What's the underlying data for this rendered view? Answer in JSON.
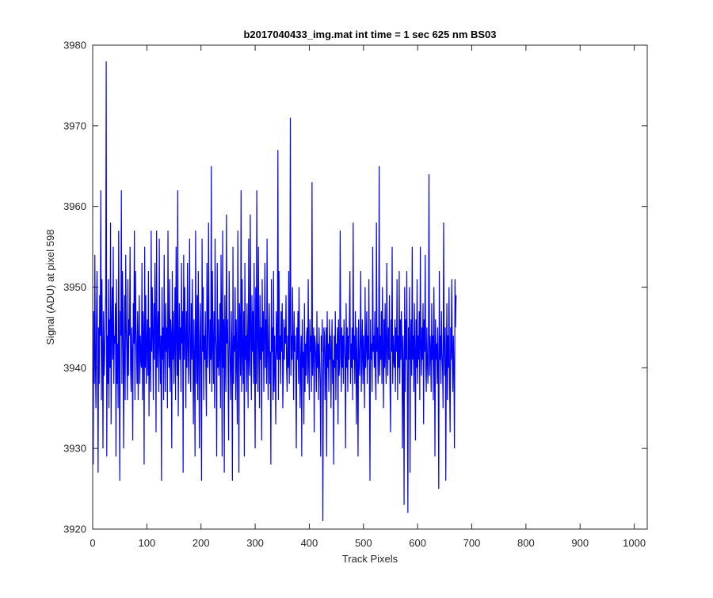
{
  "chart_data": {
    "type": "line",
    "title": "b2017040433_img.mat int time = 1 sec  625 nm BS03",
    "xlabel": "Track Pixels",
    "ylabel": "Signal (ADU) at pixel 598",
    "xlim": [
      0,
      1024
    ],
    "ylim": [
      3920,
      3980
    ],
    "xticks": [
      0,
      100,
      200,
      300,
      400,
      500,
      600,
      700,
      800,
      900,
      1000
    ],
    "yticks": [
      3920,
      3930,
      3940,
      3950,
      3960,
      3970,
      3980
    ],
    "grid": false,
    "box": true,
    "line_color": "#0000ff",
    "series": [
      {
        "x_start": 1,
        "x_step": 1,
        "y": [
          3928,
          3947,
          3938,
          3954,
          3941,
          3935,
          3946,
          3952,
          3940,
          3927,
          3945,
          3938,
          3949,
          3944,
          3962,
          3936,
          3951,
          3943,
          3930,
          3947,
          3939,
          3941,
          3945,
          3949,
          3978,
          3929,
          3944,
          3938,
          3951,
          3935,
          3946,
          3940,
          3958,
          3933,
          3945,
          3950,
          3941,
          3955,
          3938,
          3944,
          3943,
          3948,
          3929,
          3951,
          3938,
          3943,
          3935,
          3957,
          3941,
          3926,
          3947,
          3944,
          3962,
          3938,
          3952,
          3947,
          3930,
          3941,
          3949,
          3936,
          3954,
          3945,
          3942,
          3936,
          3951,
          3939,
          3946,
          3944,
          3955,
          3940,
          3937,
          3945,
          3942,
          3931,
          3948,
          3943,
          3957,
          3936,
          3952,
          3945,
          3942,
          3938,
          3947,
          3936,
          3943,
          3949,
          3938,
          3944,
          3941,
          3940,
          3953,
          3936,
          3947,
          3944,
          3928,
          3955,
          3940,
          3949,
          3938,
          3943,
          3946,
          3939,
          3952,
          3934,
          3945,
          3941,
          3937,
          3957,
          3942,
          3950,
          3944,
          3936,
          3948,
          3941,
          3953,
          3945,
          3932,
          3957,
          3940,
          3944,
          3947,
          3937,
          3956,
          3943,
          3938,
          3944,
          3926,
          3950,
          3941,
          3945,
          3936,
          3954,
          3943,
          3937,
          3948,
          3942,
          3945,
          3935,
          3957,
          3943,
          3940,
          3951,
          3937,
          3946,
          3944,
          3930,
          3952,
          3941,
          3947,
          3938,
          3943,
          3950,
          3936,
          3955,
          3944,
          3939,
          3962,
          3934,
          3942,
          3948,
          3941,
          3945,
          3937,
          3953,
          3943,
          3947,
          3927,
          3954,
          3941,
          3950,
          3944,
          3935,
          3947,
          3940,
          3953,
          3943,
          3938,
          3945,
          3956,
          3940,
          3937,
          3948,
          3941,
          3951,
          3942,
          3933,
          3946,
          3940,
          3929,
          3957,
          3943,
          3938,
          3949,
          3936,
          3952,
          3942,
          3930,
          3944,
          3948,
          3939,
          3926,
          3956,
          3942,
          3950,
          3936,
          3944,
          3941,
          3947,
          3939,
          3934,
          3953,
          3940,
          3945,
          3958,
          3942,
          3938,
          3946,
          3941,
          3965,
          3937,
          3952,
          3943,
          3938,
          3947,
          3935,
          3956,
          3944,
          3942,
          3929,
          3953,
          3940,
          3946,
          3939,
          3942,
          3948,
          3935,
          3954,
          3944,
          3929,
          3957,
          3940,
          3946,
          3927,
          3949,
          3942,
          3937,
          3959,
          3943,
          3946,
          3939,
          3931,
          3952,
          3944,
          3940,
          3936,
          3947,
          3942,
          3926,
          3955,
          3938,
          3944,
          3942,
          3950,
          3936,
          3946,
          3941,
          3933,
          3957,
          3944,
          3927,
          3948,
          3945,
          3939,
          3962,
          3937,
          3951,
          3942,
          3938,
          3947,
          3929,
          3953,
          3941,
          3944,
          3937,
          3948,
          3942,
          3935,
          3956,
          3941,
          3939,
          3959,
          3944,
          3936,
          3949,
          3942,
          3947,
          3938,
          3953,
          3941,
          3930,
          3950,
          3938,
          3962,
          3944,
          3937,
          3955,
          3943,
          3935,
          3949,
          3941,
          3945,
          3931,
          3951,
          3942,
          3947,
          3937,
          3944,
          3953,
          3940,
          3946,
          3938,
          3956,
          3942,
          3936,
          3944,
          3948,
          3938,
          3942,
          3928,
          3951,
          3942,
          3945,
          3936,
          3952,
          3937,
          3944,
          3940,
          3933,
          3947,
          3943,
          3941,
          3967,
          3936,
          3952,
          3941,
          3944,
          3938,
          3947,
          3942,
          3948,
          3935,
          3939,
          3946,
          3941,
          3945,
          3943,
          3949,
          3940,
          3937,
          3944,
          3940,
          3952,
          3938,
          3945,
          3971,
          3939,
          3944,
          3941,
          3950,
          3943,
          3936,
          3947,
          3942,
          3944,
          3940,
          3930,
          3945,
          3941,
          3947,
          3938,
          3950,
          3943,
          3935,
          3941,
          3944,
          3929,
          3946,
          3940,
          3942,
          3933,
          3948,
          3937,
          3943,
          3939,
          3944,
          3945,
          3938,
          3951,
          3940,
          3936,
          3946,
          3942,
          3944,
          3937,
          3963,
          3939,
          3942,
          3945,
          3932,
          3944,
          3943,
          3941,
          3937,
          3947,
          3940,
          3943,
          3936,
          3945,
          3941,
          3938,
          3929,
          3944,
          3942,
          3946,
          3921,
          3939,
          3945,
          3944,
          3936,
          3941,
          3945,
          3929,
          3947,
          3940,
          3943,
          3937,
          3946,
          3941,
          3944,
          3935,
          3942,
          3946,
          3938,
          3941,
          3928,
          3944,
          3940,
          3947,
          3936,
          3943,
          3941,
          3945,
          3933,
          3946,
          3939,
          3941,
          3957,
          3943,
          3937,
          3945,
          3940,
          3944,
          3938,
          3946,
          3943,
          3941,
          3930,
          3948,
          3940,
          3945,
          3937,
          3944,
          3941,
          3946,
          3952,
          3938,
          3943,
          3940,
          3945,
          3936,
          3958,
          3941,
          3944,
          3938,
          3947,
          3942,
          3933,
          3945,
          3940,
          3929,
          3946,
          3941,
          3939,
          3944,
          3952,
          3937,
          3942,
          3946,
          3938,
          3944,
          3941,
          3935,
          3950,
          3940,
          3943,
          3947,
          3938,
          3944,
          3941,
          3951,
          3939,
          3926,
          3946,
          3941,
          3943,
          3937,
          3955,
          3942,
          3944,
          3940,
          3947,
          3939,
          3936,
          3958,
          3942,
          3945,
          3938,
          3941,
          3965,
          3939,
          3944,
          3941,
          3947,
          3938,
          3950,
          3942,
          3935,
          3946,
          3940,
          3948,
          3941,
          3938,
          3953,
          3943,
          3939,
          3945,
          3941,
          3949,
          3938,
          3932,
          3946,
          3942,
          3955,
          3938,
          3944,
          3941,
          3940,
          3946,
          3937,
          3945,
          3942,
          3951,
          3936,
          3944,
          3940,
          3952,
          3938,
          3946,
          3941,
          3947,
          3943,
          3930,
          3944,
          3940,
          3923,
          3950,
          3937,
          3946,
          3941,
          3952,
          3938,
          3922,
          3945,
          3941,
          3950,
          3927,
          3943,
          3946,
          3939,
          3955,
          3941,
          3944,
          3937,
          3948,
          3942,
          3931,
          3946,
          3940,
          3951,
          3938,
          3944,
          3941,
          3947,
          3936,
          3955,
          3943,
          3939,
          3945,
          3941,
          3948,
          3933,
          3946,
          3942,
          3954,
          3940,
          3937,
          3945,
          3941,
          3938,
          3943,
          3964,
          3939,
          3944,
          3942,
          3937,
          3948,
          3941,
          3944,
          3936,
          3950,
          3943,
          3929,
          3946,
          3941,
          3943,
          3938,
          3945,
          3940,
          3925,
          3952,
          3941,
          3944,
          3938,
          3947,
          3942,
          3940,
          3935,
          3958,
          3943,
          3939,
          3945,
          3926,
          3941,
          3948,
          3936,
          3944,
          3940,
          3950,
          3938,
          3932,
          3945,
          3941,
          3951,
          3942,
          3937,
          3944,
          3940,
          3930,
          3951,
          3945,
          3949
        ]
      }
    ]
  }
}
